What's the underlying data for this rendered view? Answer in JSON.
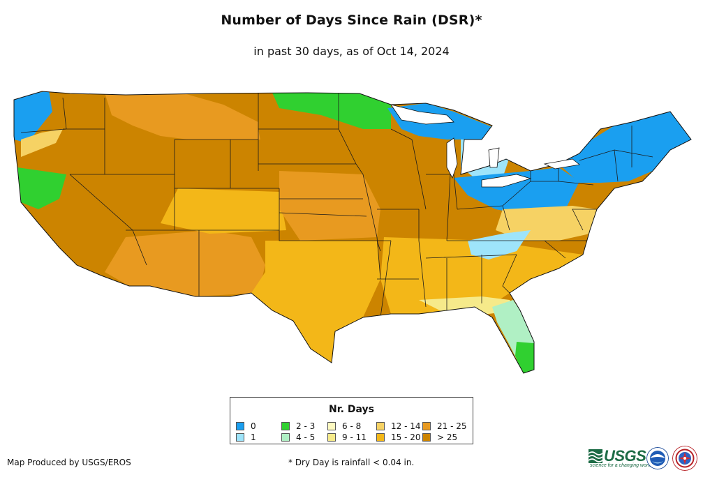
{
  "title": "Number of Days Since Rain (DSR)*",
  "subtitle": "in past 30 days, as of Oct 14, 2024",
  "legend": {
    "title": "Nr. Days",
    "classes": [
      {
        "label": "0",
        "color": "#1a9ff0"
      },
      {
        "label": "1",
        "color": "#9ee4fa"
      },
      {
        "label": "2 - 3",
        "color": "#30d030"
      },
      {
        "label": "4 - 5",
        "color": "#b0f0c4"
      },
      {
        "label": "6 - 8",
        "color": "#fdf9c0"
      },
      {
        "label": "9 - 11",
        "color": "#f6ea8a"
      },
      {
        "label": "12 - 14",
        "color": "#f6d264"
      },
      {
        "label": "15 - 20",
        "color": "#f3b718"
      },
      {
        "label": "21 - 25",
        "color": "#e89a20"
      },
      {
        "label": "> 25",
        "color": "#cc8400"
      }
    ]
  },
  "credit": "Map Produced by USGS/EROS",
  "footnote": "* Dry Day is rainfall < 0.04 in.",
  "logos": {
    "usgs_text": "USGS",
    "usgs_tagline": "science for a changing world",
    "noaa_text": "NOAA",
    "nws_text": "NWS"
  },
  "regions": [
    {
      "name": "west-coast-wet",
      "class": 0
    },
    {
      "name": "pacific-northwest",
      "class": 6
    },
    {
      "name": "northern-rockies",
      "class": 8
    },
    {
      "name": "great-basin",
      "class": 9
    },
    {
      "name": "california-coast",
      "class": 2
    },
    {
      "name": "southwest",
      "class": 8
    },
    {
      "name": "colorado-plateau",
      "class": 7
    },
    {
      "name": "great-plains-north",
      "class": 9
    },
    {
      "name": "central-plains",
      "class": 8
    },
    {
      "name": "texas",
      "class": 7
    },
    {
      "name": "upper-midwest",
      "class": 2
    },
    {
      "name": "great-lakes",
      "class": 0
    },
    {
      "name": "michigan",
      "class": 1
    },
    {
      "name": "ohio-valley",
      "class": 0
    },
    {
      "name": "mid-atlantic",
      "class": 6
    },
    {
      "name": "northeast",
      "class": 0
    },
    {
      "name": "southeast",
      "class": 7
    },
    {
      "name": "appalachians",
      "class": 1
    },
    {
      "name": "gulf-coast",
      "class": 5
    },
    {
      "name": "florida",
      "class": 3
    },
    {
      "name": "south-florida",
      "class": 2
    }
  ]
}
